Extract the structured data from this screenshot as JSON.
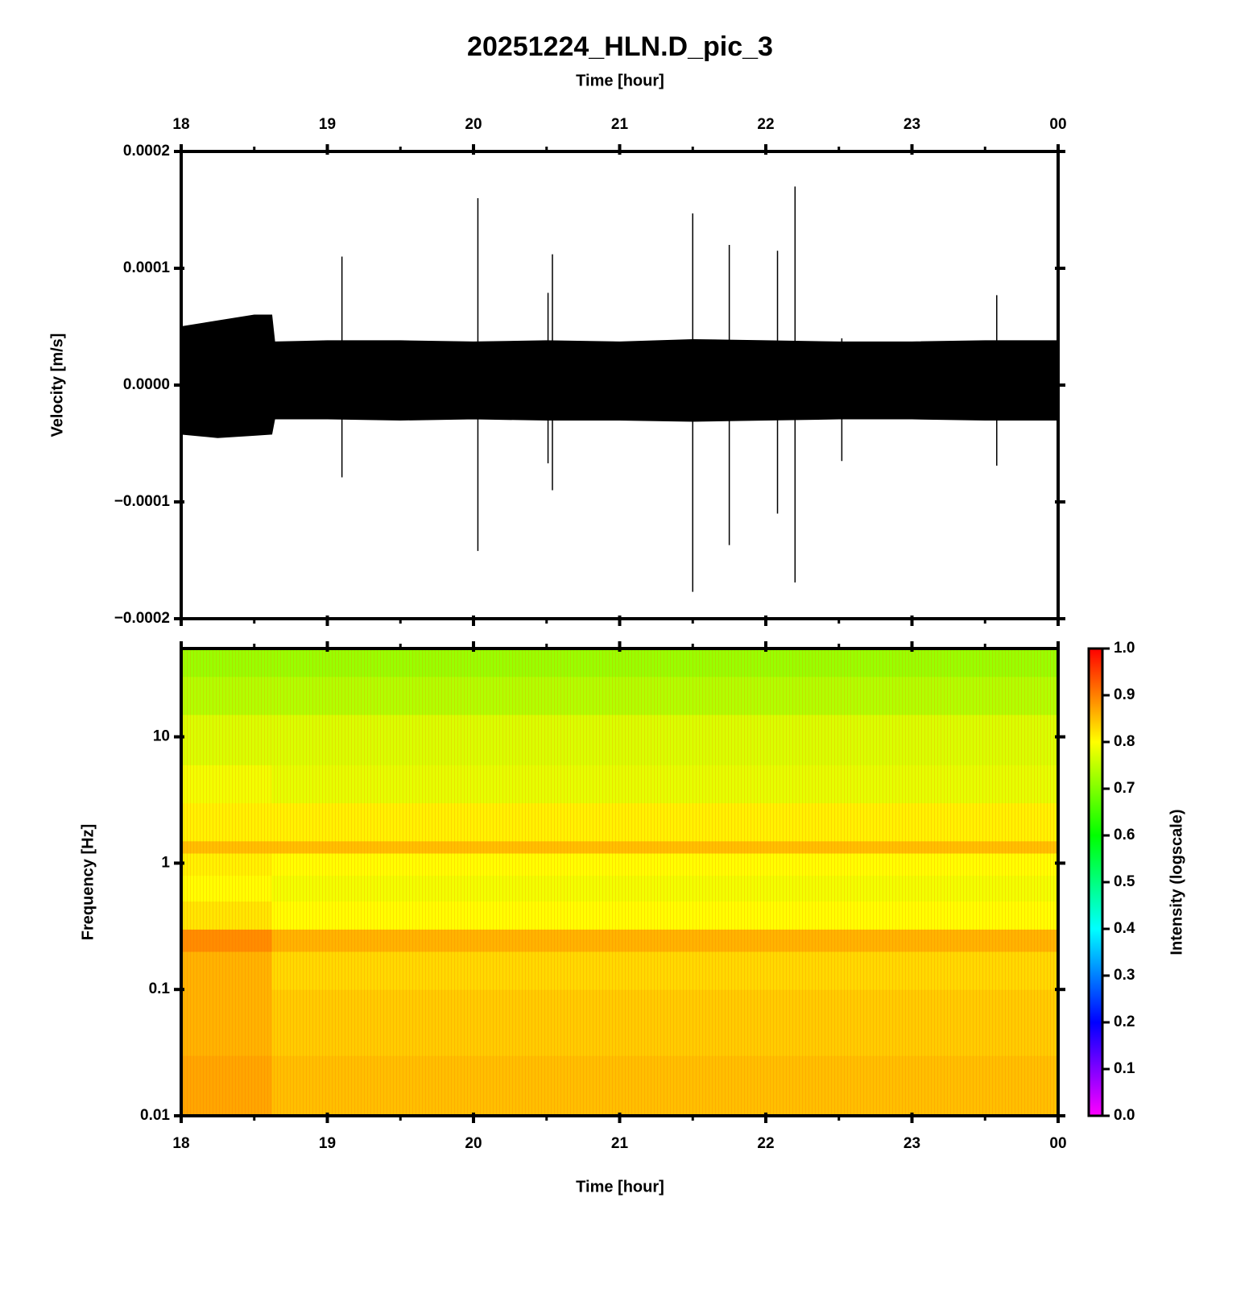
{
  "chart_data": [
    {
      "type": "waveform",
      "title": "20251224_HLN.D_pic_3",
      "xlabel": "Time [hour]",
      "ylabel": "Velocity [m/s]",
      "color": "#000000",
      "xlim": [
        18,
        24
      ],
      "xticks": [
        18,
        19,
        20,
        21,
        22,
        23,
        {
          "value": 24,
          "label": "00"
        }
      ],
      "xminorticks": [
        18.5,
        19.5,
        20.5,
        21.5,
        22.5,
        23.5
      ],
      "ylim": [
        -0.0002,
        0.0002
      ],
      "yticks": [
        {
          "value": -0.0002,
          "label": "−0.0002"
        },
        {
          "value": -0.0001,
          "label": "−0.0001"
        },
        {
          "value": 0,
          "label": "0.0000"
        },
        0.0001,
        0.0002
      ],
      "x": [
        18,
        18.25,
        18.5,
        18.62,
        18.64,
        19,
        19.5,
        20,
        20.5,
        21,
        21.5,
        22,
        22.5,
        23,
        23.5,
        24
      ],
      "upper": [
        5e-05,
        5.5e-05,
        6e-05,
        6e-05,
        3.7e-05,
        3.8e-05,
        3.8e-05,
        3.7e-05,
        3.8e-05,
        3.7e-05,
        3.9e-05,
        3.8e-05,
        3.7e-05,
        3.7e-05,
        3.8e-05,
        3.8e-05
      ],
      "lower": [
        -4.2e-05,
        -4.5e-05,
        -4.3e-05,
        -4.2e-05,
        -2.9e-05,
        -2.9e-05,
        -3e-05,
        -2.9e-05,
        -3e-05,
        -3e-05,
        -3.1e-05,
        -3e-05,
        -2.9e-05,
        -2.9e-05,
        -3e-05,
        -3e-05
      ],
      "spikes": {
        "x": [
          19.1,
          20.03,
          20.51,
          20.54,
          21.5,
          21.75,
          22.08,
          22.2,
          22.52,
          23.58
        ],
        "high": [
          0.00011,
          0.00016,
          7.9e-05,
          0.000112,
          0.000147,
          0.00012,
          0.000115,
          0.00017,
          4e-05,
          7.7e-05
        ],
        "low": [
          -7.9e-05,
          -0.000142,
          -6.7e-05,
          -9e-05,
          -0.000177,
          -0.000137,
          -0.00011,
          -0.000169,
          -6.5e-05,
          -6.9e-05
        ]
      }
    },
    {
      "type": "heatmap",
      "xlabel": "Time [hour]",
      "ylabel": "Frequency [Hz]",
      "ylog": true,
      "xlim": [
        18,
        24
      ],
      "xticks": [
        18,
        19,
        20,
        21,
        22,
        23,
        {
          "value": 24,
          "label": "00"
        }
      ],
      "xminorticks": [
        18.5,
        19.5,
        20.5,
        21.5,
        22.5,
        23.5
      ],
      "ylim": [
        0.01,
        50
      ],
      "yticks": [
        0.01,
        0.1,
        1,
        10
      ],
      "x_edges": [
        18,
        18.62,
        24
      ],
      "y_edges": [
        0.01,
        0.03,
        0.1,
        0.2,
        0.3,
        0.5,
        0.8,
        1.2,
        1.5,
        3,
        6,
        15,
        30,
        50
      ],
      "z": [
        [
          0.87,
          0.85
        ],
        [
          0.86,
          0.84
        ],
        [
          0.86,
          0.83
        ],
        [
          0.89,
          0.86
        ],
        [
          0.82,
          0.8
        ],
        [
          0.8,
          0.79
        ],
        [
          0.81,
          0.8
        ],
        [
          0.85,
          0.85
        ],
        [
          0.81,
          0.81
        ],
        [
          0.79,
          0.78
        ],
        [
          0.77,
          0.77
        ],
        [
          0.74,
          0.74
        ],
        [
          0.72,
          0.72
        ]
      ],
      "colorbar": {
        "label": "Intensity (logscale)",
        "lim": [
          0,
          1
        ],
        "ticks": [
          {
            "value": 0,
            "label": "0.0"
          },
          0.1,
          0.2,
          0.3,
          0.4,
          0.5,
          0.6,
          0.7,
          0.8,
          0.9,
          {
            "value": 1,
            "label": "1.0"
          }
        ],
        "colormap": [
          {
            "value": 0,
            "color": "#ff00ff"
          },
          {
            "value": 0.2,
            "color": "#0000ff"
          },
          {
            "value": 0.4,
            "color": "#00ffff"
          },
          {
            "value": 0.6,
            "color": "#00ff00"
          },
          {
            "value": 0.8,
            "color": "#ffff00"
          },
          {
            "value": 1,
            "color": "#ff0000"
          }
        ]
      }
    }
  ]
}
